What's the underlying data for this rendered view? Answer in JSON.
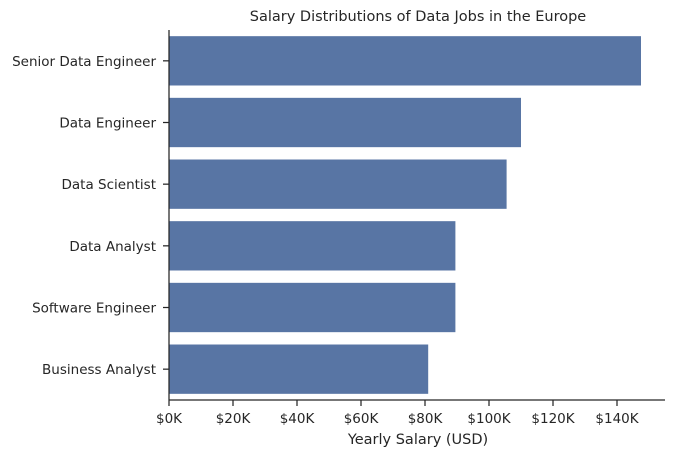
{
  "chart_data": {
    "type": "bar",
    "orientation": "horizontal",
    "title": "Salary Distributions of Data Jobs in the Europe",
    "xlabel": "Yearly Salary (USD)",
    "ylabel": "",
    "categories": [
      "Senior Data Engineer",
      "Data Engineer",
      "Data Scientist",
      "Data Analyst",
      "Software Engineer",
      "Business Analyst"
    ],
    "values": [
      147500,
      110000,
      105500,
      89500,
      89500,
      81000
    ],
    "xlim": [
      0,
      155000
    ],
    "xticks": [
      0,
      20000,
      40000,
      60000,
      80000,
      100000,
      120000,
      140000
    ],
    "xtick_labels": [
      "$0K",
      "$20K",
      "$40K",
      "$60K",
      "$80K",
      "$100K",
      "$120K",
      "$140K"
    ],
    "bar_color": "#5875a4",
    "grid": false
  }
}
